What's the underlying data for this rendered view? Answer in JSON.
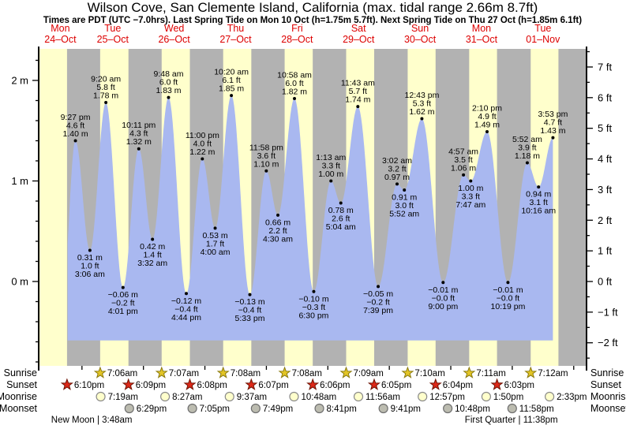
{
  "chart_data": {
    "type": "area",
    "title": "Wilson Cove, San Clemente Island, California (max. tidal range 2.66m 8.7ft)",
    "subtitle": "Times are PDT (UTC −7.0hrs). Last Spring Tide on Mon 10 Oct (h=1.75m 5.7ft). Next Spring Tide on Thu 27 Oct (h=1.85m 6.1ft)",
    "y_axis": {
      "left_unit": "m",
      "right_unit": "ft",
      "ylim_m": [
        -0.84,
        2.32
      ],
      "left_labels": [
        {
          "value": 0,
          "label": "0 m"
        },
        {
          "value": 1,
          "label": "1 m"
        },
        {
          "value": 2,
          "label": "2 m"
        }
      ],
      "right_labels": [
        {
          "value": -2,
          "label": "−2 ft"
        },
        {
          "value": -1,
          "label": "−1 ft"
        },
        {
          "value": 0,
          "label": "0 ft"
        },
        {
          "value": 1,
          "label": "1 ft"
        },
        {
          "value": 2,
          "label": "2 ft"
        },
        {
          "value": 3,
          "label": "3 ft"
        },
        {
          "value": 4,
          "label": "4 ft"
        },
        {
          "value": 5,
          "label": "5 ft"
        },
        {
          "value": 6,
          "label": "6 ft"
        },
        {
          "value": 7,
          "label": "7 ft"
        }
      ]
    },
    "days": [
      {
        "weekday": "Mon",
        "date": "24–Oct",
        "sunset": "6:10pm"
      },
      {
        "weekday": "Tue",
        "date": "25–Oct",
        "sunrise": "7:06am",
        "sunset": "6:09pm",
        "moonrise": "7:19am",
        "moonset": "6:29pm"
      },
      {
        "weekday": "Wed",
        "date": "26–Oct",
        "sunrise": "7:07am",
        "sunset": "6:08pm",
        "moonrise": "8:27am",
        "moonset": "7:05pm"
      },
      {
        "weekday": "Thu",
        "date": "27–Oct",
        "sunrise": "7:08am",
        "sunset": "6:07pm",
        "moonrise": "9:37am",
        "moonset": "7:49pm"
      },
      {
        "weekday": "Fri",
        "date": "28–Oct",
        "sunrise": "7:08am",
        "sunset": "6:06pm",
        "moonrise": "10:48am",
        "moonset": "8:41pm"
      },
      {
        "weekday": "Sat",
        "date": "29–Oct",
        "sunrise": "7:09am",
        "sunset": "6:05pm",
        "moonrise": "11:56am",
        "moonset": "9:41pm"
      },
      {
        "weekday": "Sun",
        "date": "30–Oct",
        "sunrise": "7:10am",
        "sunset": "6:04pm",
        "moonrise": "12:57pm",
        "moonset": "10:48pm"
      },
      {
        "weekday": "Mon",
        "date": "31–Oct",
        "sunrise": "7:11am",
        "sunset": "6:03pm",
        "moonrise": "1:50pm",
        "moonset": "11:58pm"
      },
      {
        "weekday": "Tue",
        "date": "01–Nov",
        "sunrise": "7:12am",
        "moonrise": "2:33pm"
      }
    ],
    "astro_row_labels": [
      "Sunrise",
      "Sunset",
      "Moonrise",
      "Moonset"
    ],
    "moon_phases": [
      {
        "name": "New Moon",
        "time": "3:48am",
        "day": 1,
        "text": "New Moon | 3:48am"
      },
      {
        "name": "First Quarter",
        "time": "11:38pm",
        "day": 7,
        "text": "First Quarter | 11:38pm"
      }
    ],
    "tide_extremes": [
      {
        "day": 0,
        "hour_24": 16.3,
        "type": "low",
        "height_m": -0.2,
        "annotated": false
      },
      {
        "day": 0,
        "time": "9:27 pm",
        "type": "high",
        "height_m": 1.4,
        "label_ft": "4.6 ft",
        "label_m": "1.40 m",
        "annotated": true
      },
      {
        "day": 1,
        "time": "3:06 am",
        "type": "low",
        "height_m": 0.31,
        "label_ft": "1.0 ft",
        "label_m": "0.31 m",
        "annotated": true
      },
      {
        "day": 1,
        "time": "9:20 am",
        "type": "high",
        "height_m": 1.78,
        "label_ft": "5.8 ft",
        "label_m": "1.78 m",
        "annotated": true
      },
      {
        "day": 1,
        "time": "4:01 pm",
        "type": "low",
        "height_m": -0.06,
        "label_ft": "−0.2 ft",
        "label_m": "−0.06 m",
        "annotated": true
      },
      {
        "day": 1,
        "time": "10:11 pm",
        "type": "high",
        "height_m": 1.32,
        "label_ft": "4.3 ft",
        "label_m": "1.32 m",
        "annotated": true
      },
      {
        "day": 2,
        "time": "3:32 am",
        "type": "low",
        "height_m": 0.42,
        "label_ft": "1.4 ft",
        "label_m": "0.42 m",
        "annotated": true
      },
      {
        "day": 2,
        "time": "9:48 am",
        "type": "high",
        "height_m": 1.83,
        "label_ft": "6.0 ft",
        "label_m": "1.83 m",
        "annotated": true
      },
      {
        "day": 2,
        "time": "4:44 pm",
        "type": "low",
        "height_m": -0.12,
        "label_ft": "−0.4 ft",
        "label_m": "−0.12 m",
        "annotated": true
      },
      {
        "day": 2,
        "time": "11:00 pm",
        "type": "high",
        "height_m": 1.22,
        "label_ft": "4.0 ft",
        "label_m": "1.22 m",
        "annotated": true
      },
      {
        "day": 3,
        "time": "4:00 am",
        "type": "low",
        "height_m": 0.53,
        "label_ft": "1.7 ft",
        "label_m": "0.53 m",
        "annotated": true
      },
      {
        "day": 3,
        "time": "10:20 am",
        "type": "high",
        "height_m": 1.85,
        "label_ft": "6.1 ft",
        "label_m": "1.85 m",
        "annotated": true
      },
      {
        "day": 3,
        "time": "5:33 pm",
        "type": "low",
        "height_m": -0.13,
        "label_ft": "−0.4 ft",
        "label_m": "−0.13 m",
        "annotated": true
      },
      {
        "day": 3,
        "time": "11:58 pm",
        "type": "high",
        "height_m": 1.1,
        "label_ft": "3.6 ft",
        "label_m": "1.10 m",
        "annotated": true
      },
      {
        "day": 4,
        "time": "4:30 am",
        "type": "low",
        "height_m": 0.66,
        "label_ft": "2.2 ft",
        "label_m": "0.66 m",
        "annotated": true
      },
      {
        "day": 4,
        "time": "10:58 am",
        "type": "high",
        "height_m": 1.82,
        "label_ft": "6.0 ft",
        "label_m": "1.82 m",
        "annotated": true
      },
      {
        "day": 4,
        "time": "6:30 pm",
        "type": "low",
        "height_m": -0.1,
        "label_ft": "−0.3 ft",
        "label_m": "−0.10 m",
        "annotated": true
      },
      {
        "day": 5,
        "time": "1:13 am",
        "type": "high",
        "height_m": 1.0,
        "label_ft": "3.3 ft",
        "label_m": "1.00 m",
        "annotated": true
      },
      {
        "day": 5,
        "time": "5:04 am",
        "type": "low",
        "height_m": 0.78,
        "label_ft": "2.6 ft",
        "label_m": "0.78 m",
        "annotated": true
      },
      {
        "day": 5,
        "time": "11:43 am",
        "type": "high",
        "height_m": 1.74,
        "label_ft": "5.7 ft",
        "label_m": "1.74 m",
        "annotated": true
      },
      {
        "day": 5,
        "time": "7:39 pm",
        "type": "low",
        "height_m": -0.05,
        "label_ft": "−0.2 ft",
        "label_m": "−0.05 m",
        "annotated": true
      },
      {
        "day": 6,
        "time": "3:02 am",
        "type": "high",
        "height_m": 0.97,
        "label_ft": "3.2 ft",
        "label_m": "0.97 m",
        "annotated": true
      },
      {
        "day": 6,
        "time": "5:52 am",
        "type": "low",
        "height_m": 0.91,
        "label_ft": "3.0 ft",
        "label_m": "0.91 m",
        "annotated": true
      },
      {
        "day": 6,
        "time": "12:43 pm",
        "type": "high",
        "height_m": 1.62,
        "label_ft": "5.3 ft",
        "label_m": "1.62 m",
        "annotated": true
      },
      {
        "day": 6,
        "time": "9:00 pm",
        "type": "low",
        "height_m": -0.01,
        "label_ft": "−0.0 ft",
        "label_m": "−0.01 m",
        "annotated": true
      },
      {
        "day": 7,
        "time": "4:57 am",
        "type": "high",
        "height_m": 1.06,
        "label_ft": "3.5 ft",
        "label_m": "1.06 m",
        "annotated": true
      },
      {
        "day": 7,
        "time": "7:47 am",
        "type": "low",
        "height_m": 1.0,
        "label_ft": "3.3 ft",
        "label_m": "1.00 m",
        "annotated": true
      },
      {
        "day": 7,
        "time": "2:10 pm",
        "type": "high",
        "height_m": 1.49,
        "label_ft": "4.9 ft",
        "label_m": "1.49 m",
        "annotated": true
      },
      {
        "day": 7,
        "time": "10:19 pm",
        "type": "low",
        "height_m": -0.01,
        "label_ft": "−0.0 ft",
        "label_m": "−0.01 m",
        "annotated": true
      },
      {
        "day": 8,
        "time": "5:52 am",
        "type": "high",
        "height_m": 1.18,
        "label_ft": "3.9 ft",
        "label_m": "1.18 m",
        "annotated": true
      },
      {
        "day": 8,
        "time": "10:16 am",
        "type": "low",
        "height_m": 0.94,
        "label_ft": "3.1 ft",
        "label_m": "0.94 m",
        "annotated": true
      },
      {
        "day": 8,
        "time": "3:53 pm",
        "type": "high",
        "height_m": 1.43,
        "label_ft": "4.7 ft",
        "label_m": "1.43 m",
        "annotated": true
      }
    ]
  },
  "colors": {
    "background": "#ffffff",
    "day_stripe": "#ffffcc",
    "night_stripe": "#b2b2b2",
    "tide_fill": "#a9b8f0",
    "day_label_red": "#dd0000",
    "axis_black": "#000000",
    "sunrise_star_fill": "#e3c525",
    "sunrise_star_stroke": "#8a7a10",
    "sunset_star_fill": "#dd2818",
    "sunset_star_stroke": "#6e1405",
    "moonrise_fill": "#ffffcc",
    "moonrise_stroke": "#8a8a8a",
    "moonset_fill": "#bcbcb0",
    "moonset_stroke": "#6f6f6f"
  }
}
